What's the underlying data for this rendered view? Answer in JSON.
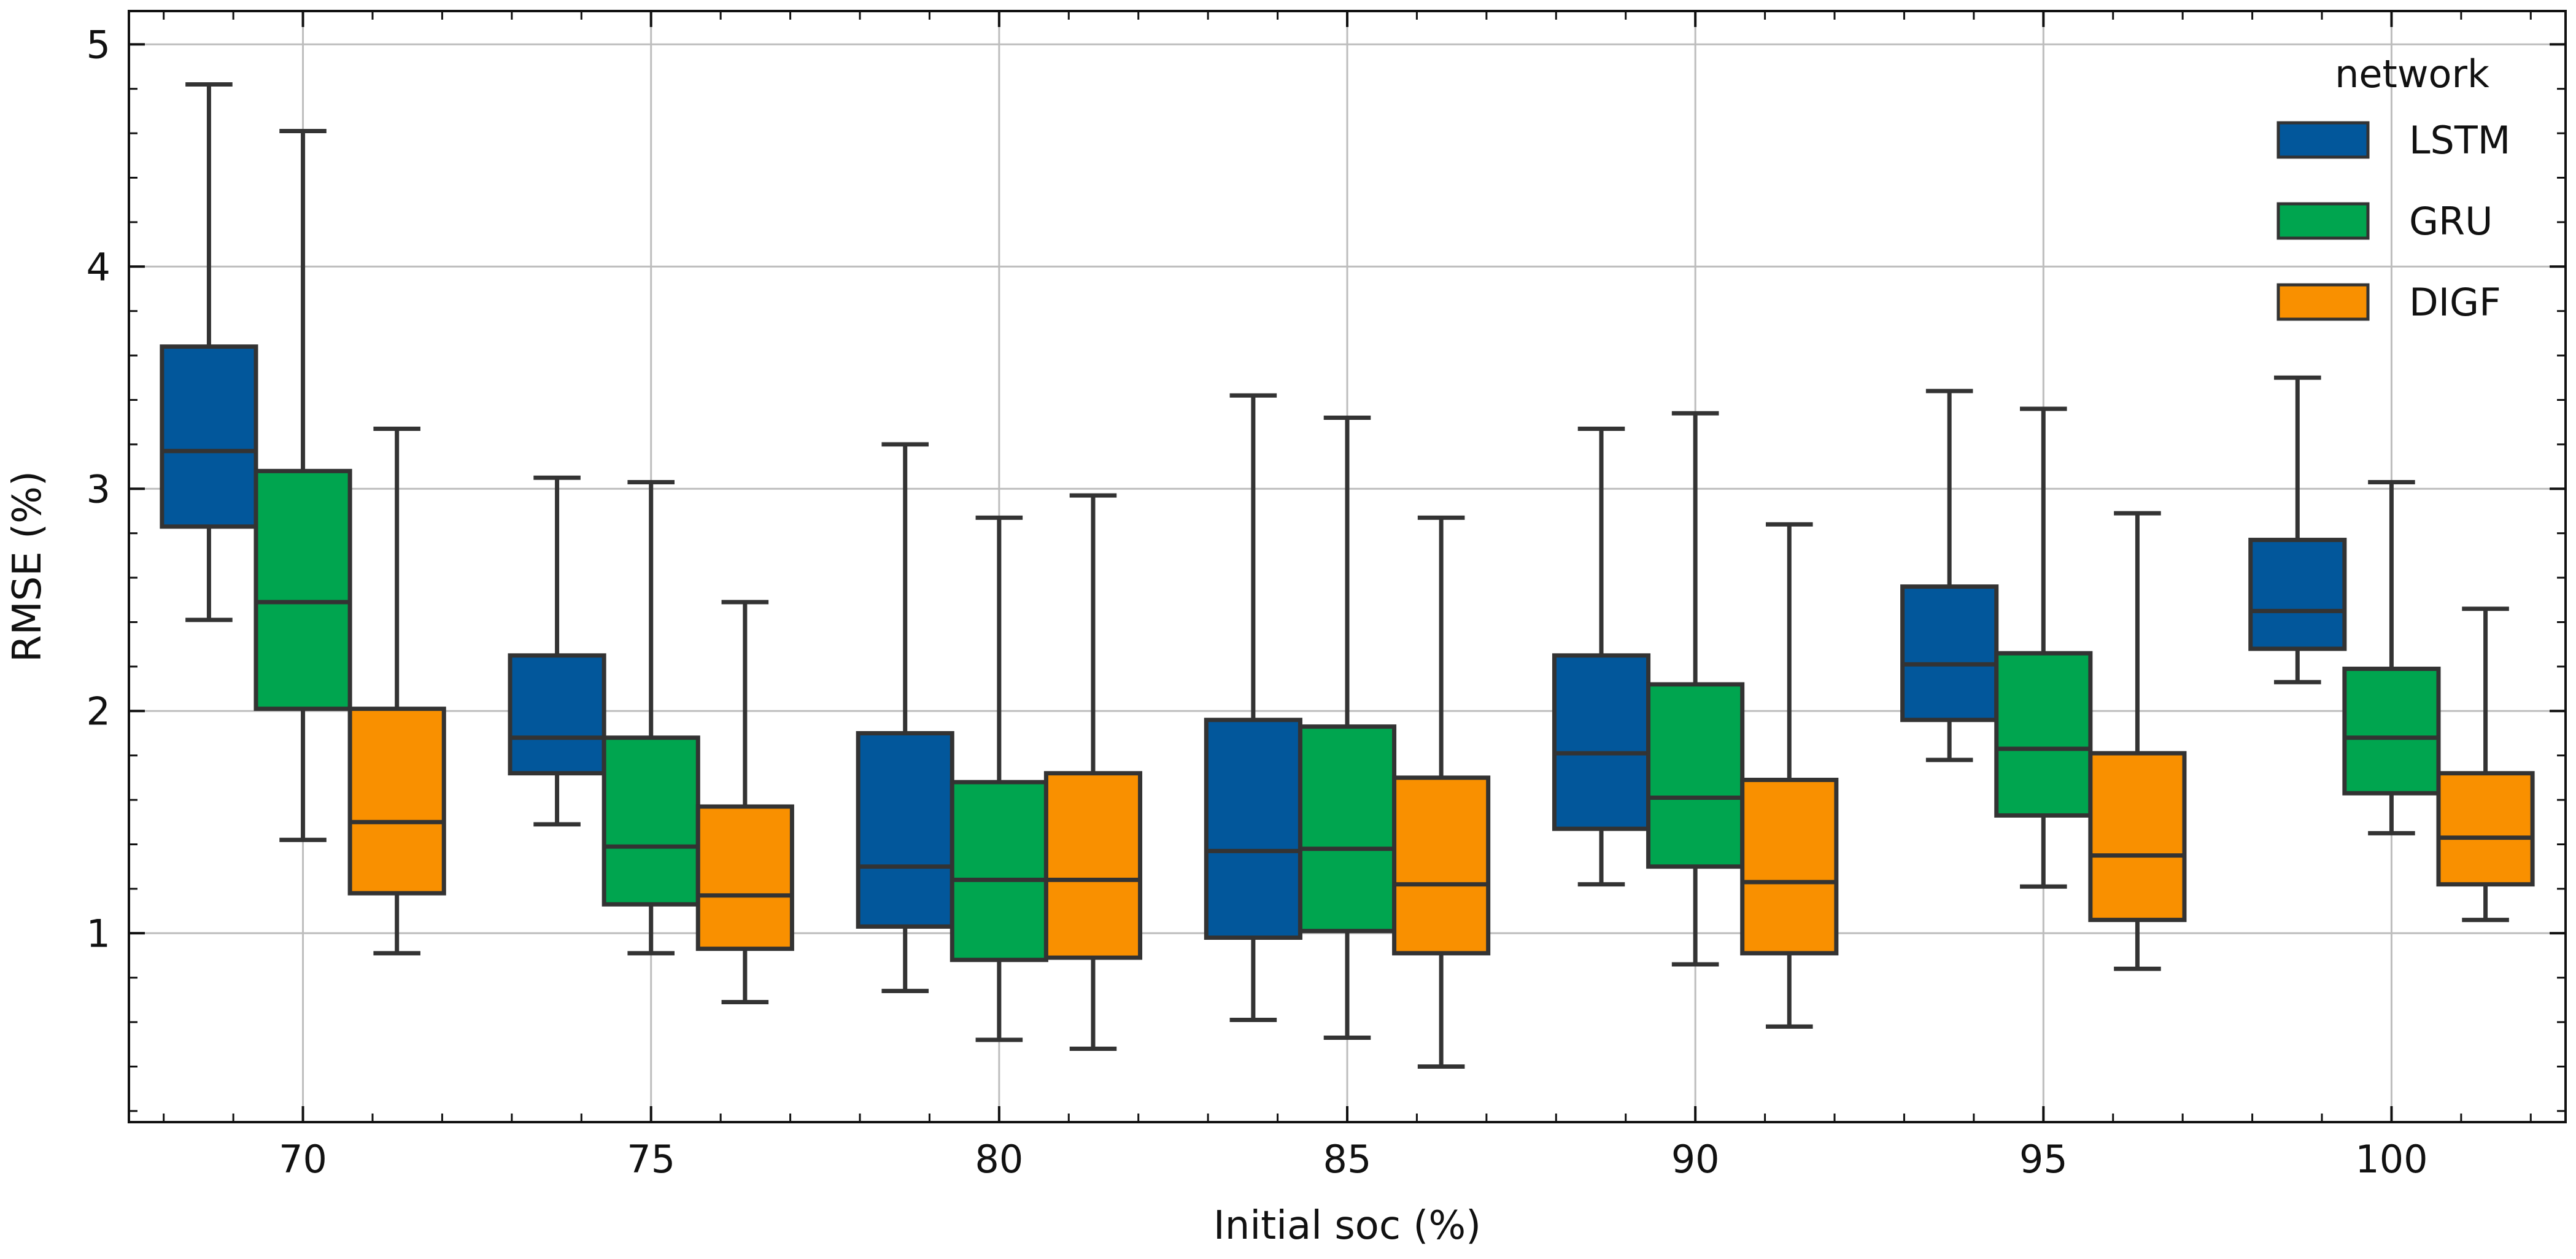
{
  "chart_data": {
    "type": "box",
    "xlabel": "Initial soc (%)",
    "ylabel": "RMSE (%)",
    "ylim": [
      0.15,
      5.15
    ],
    "yticks": [
      1,
      2,
      3,
      4,
      5
    ],
    "grid": true,
    "legend": {
      "title": "network",
      "position": "top-right"
    },
    "categories": [
      "70",
      "75",
      "80",
      "85",
      "90",
      "95",
      "100"
    ],
    "series": [
      {
        "name": "LSTM",
        "color": "#02579b",
        "boxes": [
          {
            "min": 2.41,
            "q1": 2.83,
            "median": 3.17,
            "q3": 3.64,
            "max": 4.82
          },
          {
            "min": 1.49,
            "q1": 1.72,
            "median": 1.88,
            "q3": 2.25,
            "max": 3.05
          },
          {
            "min": 0.74,
            "q1": 1.03,
            "median": 1.3,
            "q3": 1.9,
            "max": 3.2
          },
          {
            "min": 0.61,
            "q1": 0.98,
            "median": 1.37,
            "q3": 1.96,
            "max": 3.42
          },
          {
            "min": 1.22,
            "q1": 1.47,
            "median": 1.81,
            "q3": 2.25,
            "max": 3.27
          },
          {
            "min": 1.78,
            "q1": 1.96,
            "median": 2.21,
            "q3": 2.56,
            "max": 3.44
          },
          {
            "min": 2.13,
            "q1": 2.28,
            "median": 2.45,
            "q3": 2.77,
            "max": 3.5
          }
        ]
      },
      {
        "name": "GRU",
        "color": "#00a54f",
        "boxes": [
          {
            "min": 1.42,
            "q1": 2.01,
            "median": 2.49,
            "q3": 3.08,
            "max": 4.61
          },
          {
            "min": 0.91,
            "q1": 1.13,
            "median": 1.39,
            "q3": 1.88,
            "max": 3.03
          },
          {
            "min": 0.52,
            "q1": 0.88,
            "median": 1.24,
            "q3": 1.68,
            "max": 2.87
          },
          {
            "min": 0.53,
            "q1": 1.01,
            "median": 1.38,
            "q3": 1.93,
            "max": 3.32
          },
          {
            "min": 0.86,
            "q1": 1.3,
            "median": 1.61,
            "q3": 2.12,
            "max": 3.34
          },
          {
            "min": 1.21,
            "q1": 1.53,
            "median": 1.83,
            "q3": 2.26,
            "max": 3.36
          },
          {
            "min": 1.45,
            "q1": 1.63,
            "median": 1.88,
            "q3": 2.19,
            "max": 3.03
          }
        ]
      },
      {
        "name": "DIGF",
        "color": "#f99000",
        "boxes": [
          {
            "min": 0.91,
            "q1": 1.18,
            "median": 1.5,
            "q3": 2.01,
            "max": 3.27
          },
          {
            "min": 0.69,
            "q1": 0.93,
            "median": 1.17,
            "q3": 1.57,
            "max": 2.49
          },
          {
            "min": 0.48,
            "q1": 0.89,
            "median": 1.24,
            "q3": 1.72,
            "max": 2.97
          },
          {
            "min": 0.4,
            "q1": 0.91,
            "median": 1.22,
            "q3": 1.7,
            "max": 2.87
          },
          {
            "min": 0.58,
            "q1": 0.91,
            "median": 1.23,
            "q3": 1.69,
            "max": 2.84
          },
          {
            "min": 0.84,
            "q1": 1.06,
            "median": 1.35,
            "q3": 1.81,
            "max": 2.89
          },
          {
            "min": 1.06,
            "q1": 1.22,
            "median": 1.43,
            "q3": 1.72,
            "max": 2.46
          }
        ]
      }
    ]
  }
}
